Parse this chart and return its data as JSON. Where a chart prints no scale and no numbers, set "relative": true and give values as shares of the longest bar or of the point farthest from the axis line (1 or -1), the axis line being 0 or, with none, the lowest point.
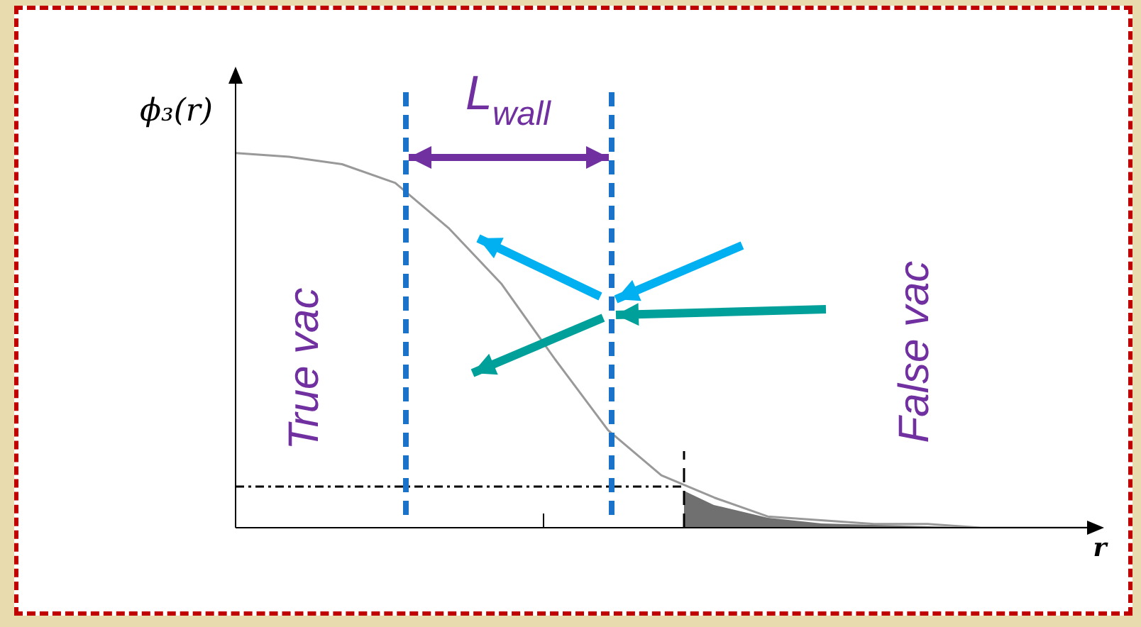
{
  "chart_data": {
    "type": "line",
    "relative": true,
    "ylabel": "ϕ₃(r)",
    "xlabel": "r",
    "categories": [
      null,
      null,
      null,
      null,
      null,
      null,
      null,
      null,
      null,
      null,
      null,
      null,
      null,
      null,
      null,
      null,
      null
    ],
    "series": [
      {
        "color": "#999999",
        "values": [
          1,
          0.99,
          0.97,
          0.92,
          0.8,
          0.65,
          0.45,
          0.26,
          0.14,
          0.08,
          0.03,
          0.02,
          0.01,
          0.01,
          0,
          0,
          0
        ]
      }
    ],
    "ref_lines": [
      {
        "axis": "y",
        "value": 0.11,
        "color": "#000000",
        "line_style": "dashdot"
      }
    ],
    "annotations": [
      "L$_{wall}$",
      "True vac",
      "False vac"
    ],
    "grid": false,
    "legend": false,
    "marker": "none",
    "line_style": "solid"
  }
}
